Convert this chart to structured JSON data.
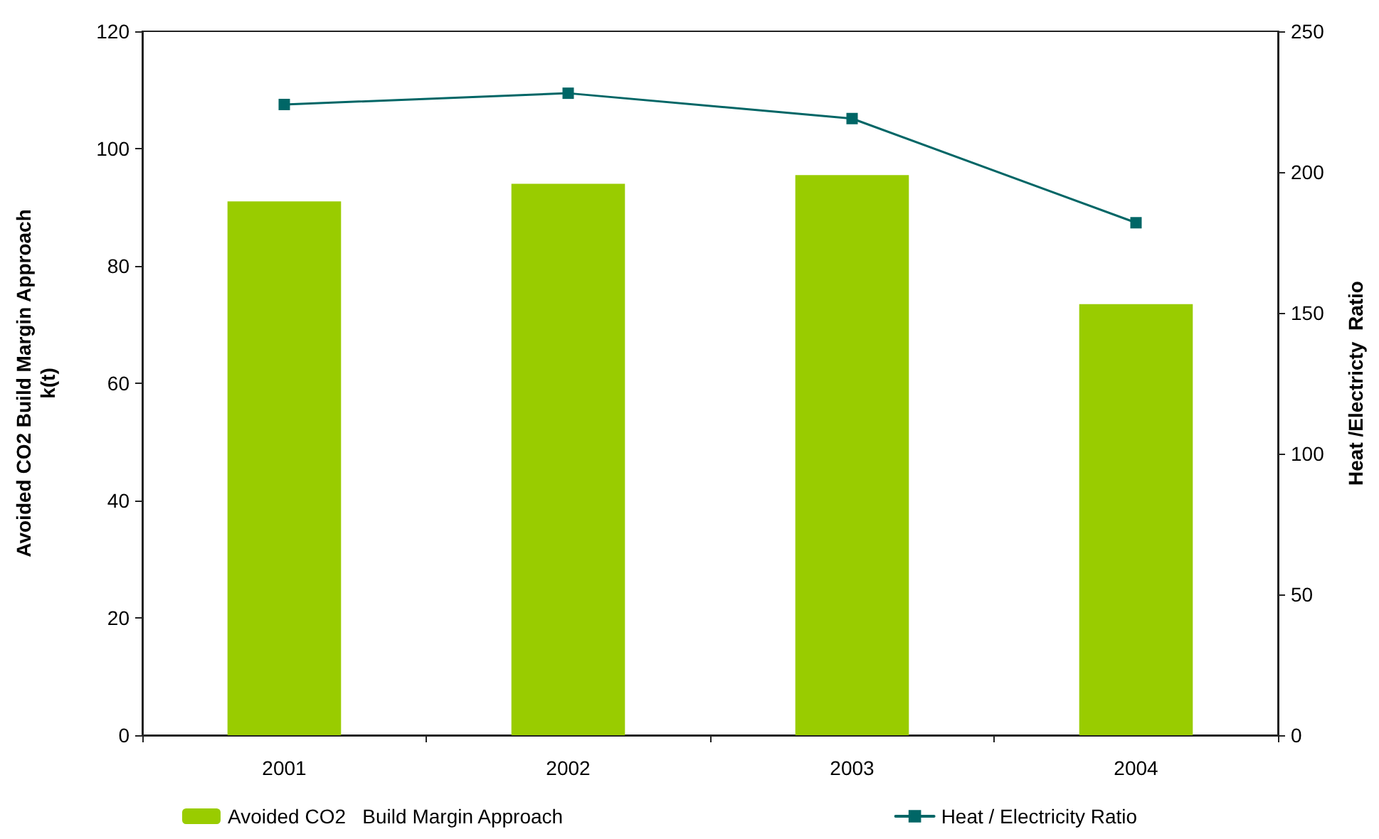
{
  "chart_data": {
    "type": "bar",
    "categories": [
      "2001",
      "2002",
      "2003",
      "2004"
    ],
    "series": [
      {
        "name": "Avoided CO2   Build Margin Approach",
        "color": "#99cc00",
        "values": [
          91,
          94,
          95.5,
          73.5
        ]
      },
      {
        "name": "Heat / Electricity Ratio",
        "type": "line",
        "axis": "y2",
        "color": "#006666",
        "values": [
          224,
          228,
          219,
          182
        ]
      }
    ],
    "ylabel": "Avoided CO2 Build Margin Approach\nk(t)",
    "y2label": "Heat /Electricty  Ratio",
    "ylim": [
      0,
      120
    ],
    "yticks": [
      0,
      20,
      40,
      60,
      80,
      100,
      120
    ],
    "y2lim": [
      0,
      250
    ],
    "y2ticks": [
      0,
      50,
      100,
      150,
      200,
      250
    ],
    "legend": "bottom",
    "grid": false,
    "marker": "square",
    "line_style": "solid"
  }
}
